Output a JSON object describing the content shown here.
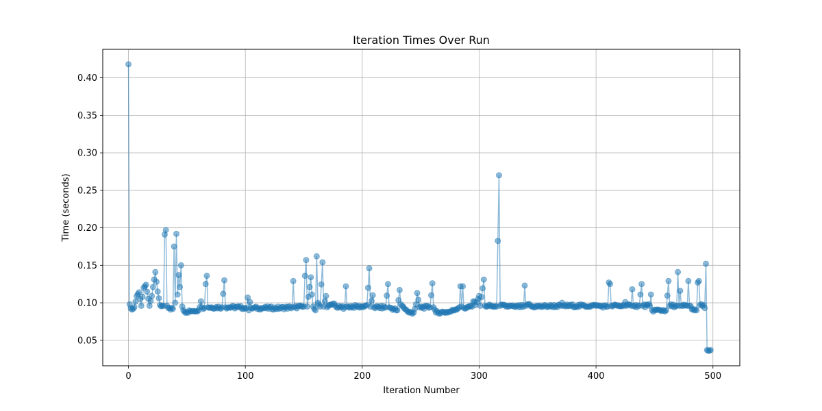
{
  "chart_data": {
    "type": "line",
    "title": "Iteration Times Over Run",
    "xlabel": "Iteration Number",
    "ylabel": "Time (seconds)",
    "xlim": [
      -22,
      523
    ],
    "ylim": [
      0.016,
      0.438
    ],
    "xticks": [
      0,
      100,
      200,
      300,
      400,
      500
    ],
    "yticks": [
      0.05,
      0.1,
      0.15,
      0.2,
      0.25,
      0.3,
      0.35,
      0.4
    ],
    "ytick_labels": [
      "0.05",
      "0.10",
      "0.15",
      "0.20",
      "0.25",
      "0.30",
      "0.35",
      "0.40"
    ],
    "grid": true,
    "color": "#1f77b4",
    "base": [
      [
        0,
        0.418
      ],
      [
        1,
        0.098
      ],
      [
        3,
        0.091
      ],
      [
        5,
        0.094
      ],
      [
        7,
        0.109
      ],
      [
        9,
        0.114
      ],
      [
        11,
        0.096
      ],
      [
        13,
        0.12
      ],
      [
        15,
        0.124
      ],
      [
        18,
        0.096
      ],
      [
        20,
        0.109
      ],
      [
        21,
        0.121
      ],
      [
        23,
        0.141
      ],
      [
        25,
        0.115
      ],
      [
        27,
        0.097
      ],
      [
        30,
        0.096
      ],
      [
        31,
        0.191
      ],
      [
        32,
        0.197
      ],
      [
        33,
        0.096
      ],
      [
        36,
        0.091
      ],
      [
        38,
        0.092
      ],
      [
        39,
        0.175
      ],
      [
        40,
        0.1
      ],
      [
        41,
        0.192
      ],
      [
        42,
        0.111
      ],
      [
        43,
        0.137
      ],
      [
        44,
        0.121
      ],
      [
        45,
        0.15
      ],
      [
        46,
        0.095
      ],
      [
        47,
        0.09
      ],
      [
        48,
        0.088
      ],
      [
        55,
        0.089
      ],
      [
        60,
        0.09
      ],
      [
        62,
        0.102
      ],
      [
        63,
        0.094
      ],
      [
        65,
        0.093
      ],
      [
        66,
        0.125
      ],
      [
        67,
        0.136
      ],
      [
        68,
        0.094
      ],
      [
        80,
        0.094
      ],
      [
        82,
        0.13
      ],
      [
        83,
        0.094
      ],
      [
        95,
        0.094
      ],
      [
        101,
        0.093
      ],
      [
        102,
        0.107
      ],
      [
        103,
        0.09
      ],
      [
        104,
        0.101
      ],
      [
        105,
        0.093
      ],
      [
        130,
        0.093
      ],
      [
        140,
        0.094
      ],
      [
        141,
        0.129
      ],
      [
        142,
        0.094
      ],
      [
        150,
        0.095
      ],
      [
        151,
        0.136
      ],
      [
        152,
        0.157
      ],
      [
        153,
        0.095
      ],
      [
        156,
        0.134
      ],
      [
        157,
        0.111
      ],
      [
        158,
        0.095
      ],
      [
        160,
        0.09
      ],
      [
        161,
        0.162
      ],
      [
        162,
        0.1
      ],
      [
        164,
        0.095
      ],
      [
        166,
        0.154
      ],
      [
        167,
        0.095
      ],
      [
        169,
        0.109
      ],
      [
        170,
        0.094
      ],
      [
        176,
        0.099
      ],
      [
        178,
        0.094
      ],
      [
        185,
        0.094
      ],
      [
        186,
        0.122
      ],
      [
        187,
        0.095
      ],
      [
        200,
        0.095
      ],
      [
        204,
        0.097
      ],
      [
        205,
        0.12
      ],
      [
        206,
        0.146
      ],
      [
        207,
        0.095
      ],
      [
        209,
        0.11
      ],
      [
        210,
        0.094
      ],
      [
        220,
        0.094
      ],
      [
        222,
        0.125
      ],
      [
        223,
        0.094
      ],
      [
        230,
        0.09
      ],
      [
        232,
        0.117
      ],
      [
        233,
        0.098
      ],
      [
        235,
        0.095
      ],
      [
        238,
        0.09
      ],
      [
        240,
        0.087
      ],
      [
        244,
        0.087
      ],
      [
        246,
        0.098
      ],
      [
        247,
        0.113
      ],
      [
        248,
        0.104
      ],
      [
        249,
        0.094
      ],
      [
        258,
        0.094
      ],
      [
        260,
        0.126
      ],
      [
        261,
        0.094
      ],
      [
        263,
        0.087
      ],
      [
        275,
        0.088
      ],
      [
        283,
        0.094
      ],
      [
        284,
        0.122
      ],
      [
        285,
        0.095
      ],
      [
        286,
        0.122
      ],
      [
        287,
        0.093
      ],
      [
        294,
        0.095
      ],
      [
        295,
        0.102
      ],
      [
        297,
        0.097
      ],
      [
        300,
        0.109
      ],
      [
        301,
        0.096
      ],
      [
        304,
        0.131
      ],
      [
        305,
        0.096
      ],
      [
        315,
        0.095
      ],
      [
        317,
        0.27
      ],
      [
        318,
        0.096
      ],
      [
        330,
        0.095
      ],
      [
        338,
        0.095
      ],
      [
        339,
        0.123
      ],
      [
        340,
        0.096
      ],
      [
        342,
        0.098
      ],
      [
        345,
        0.095
      ],
      [
        370,
        0.096
      ],
      [
        371,
        0.1
      ],
      [
        372,
        0.096
      ],
      [
        400,
        0.096
      ],
      [
        410,
        0.095
      ],
      [
        411,
        0.127
      ],
      [
        412,
        0.125
      ],
      [
        413,
        0.096
      ],
      [
        424,
        0.096
      ],
      [
        425,
        0.101
      ],
      [
        426,
        0.096
      ],
      [
        430,
        0.096
      ],
      [
        431,
        0.118
      ],
      [
        432,
        0.096
      ],
      [
        437,
        0.096
      ],
      [
        438,
        0.111
      ],
      [
        439,
        0.125
      ],
      [
        440,
        0.096
      ],
      [
        446,
        0.096
      ],
      [
        447,
        0.111
      ],
      [
        448,
        0.09
      ],
      [
        460,
        0.09
      ],
      [
        462,
        0.129
      ],
      [
        463,
        0.096
      ],
      [
        469,
        0.096
      ],
      [
        470,
        0.141
      ],
      [
        471,
        0.096
      ],
      [
        472,
        0.116
      ],
      [
        473,
        0.096
      ],
      [
        478,
        0.096
      ],
      [
        479,
        0.129
      ],
      [
        480,
        0.096
      ],
      [
        484,
        0.09
      ],
      [
        486,
        0.09
      ],
      [
        487,
        0.127
      ],
      [
        488,
        0.129
      ],
      [
        489,
        0.097
      ],
      [
        492,
        0.097
      ],
      [
        493,
        0.093
      ],
      [
        494,
        0.152
      ],
      [
        495,
        0.037
      ],
      [
        496,
        0.036
      ],
      [
        497,
        0.036
      ],
      [
        498,
        0.037
      ]
    ]
  }
}
